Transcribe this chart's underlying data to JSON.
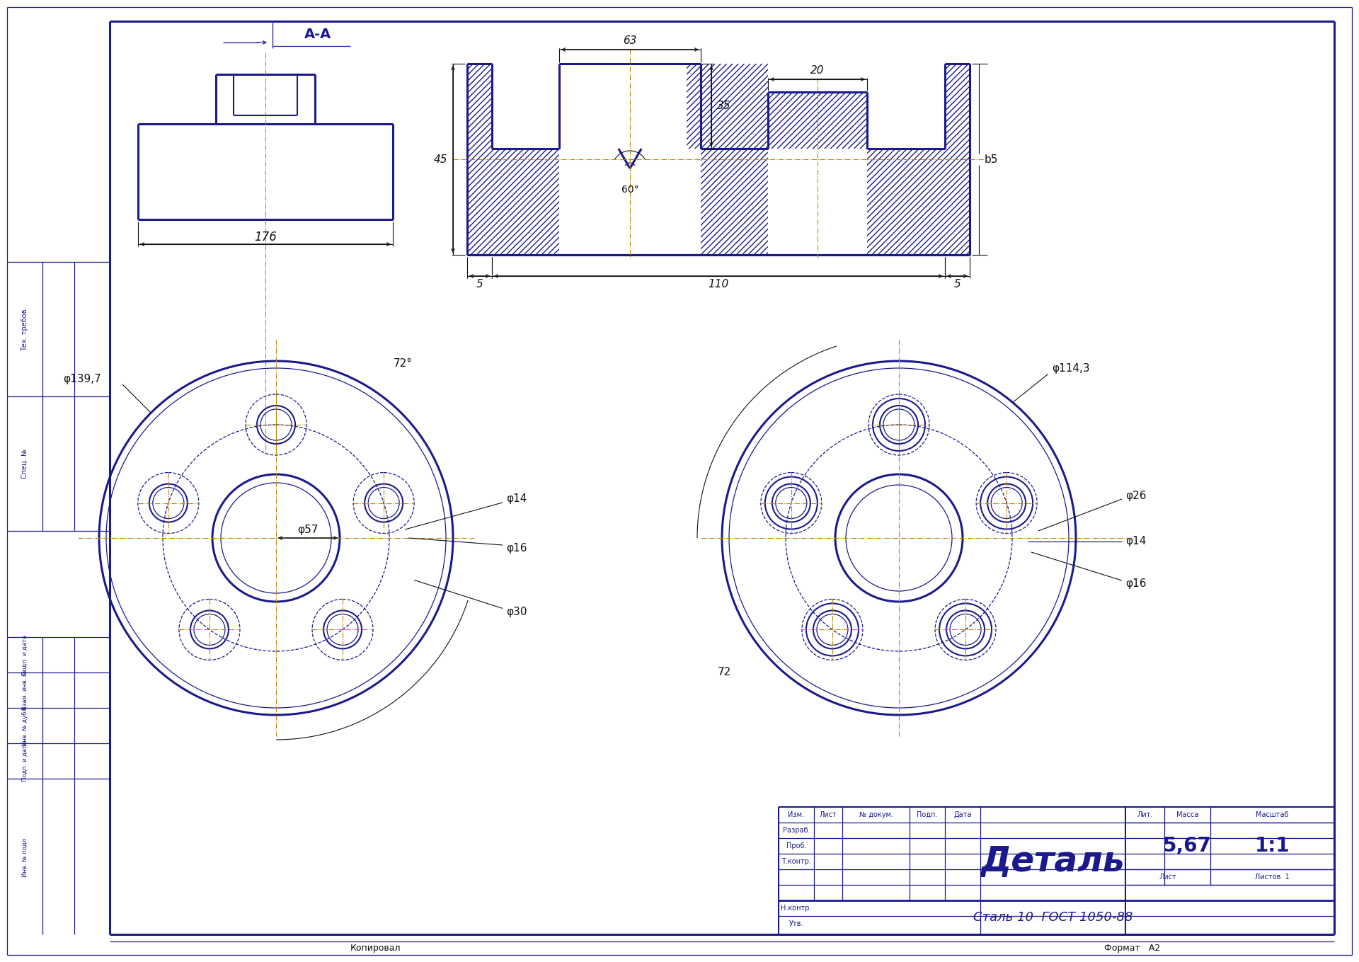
{
  "bg_color": "#ffffff",
  "line_color": "#1a1a8c",
  "dim_color": "#111111",
  "hatch_color": "#1a1a8c",
  "title": "Деталь",
  "material": "Сталь 10  ГОСТ 1050-88",
  "mass": "5,67",
  "scale": "1:1",
  "section_label": "А-А",
  "view1_dim_176": "176",
  "view1_dim_phi": "φ139,7",
  "view1_dim_72deg": "72°",
  "view1_dim_phi14": "φ14",
  "view1_dim_phi57": "φ57",
  "view1_dim_phi16": "φ16",
  "view1_dim_phi30": "φ30",
  "view2_dim_63": "63",
  "view2_dim_35v": "35",
  "view2_dim_45": "45",
  "view2_dim_60": "60°",
  "view2_dim_110": "110",
  "view2_dim_5": "5",
  "view2_dim_5r": "5",
  "view2_dim_b5": "b5",
  "view3_dim_phi143": "φ114,3",
  "view3_dim_72": "72",
  "view3_dim_phi26": "φ26",
  "view3_dim_phi14": "φ14",
  "view3_dim_phi16": "φ16"
}
